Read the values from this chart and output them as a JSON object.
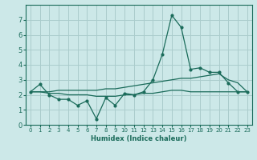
{
  "xlabel": "Humidex (Indice chaleur)",
  "ylabel": "",
  "bg_color": "#cce8e8",
  "grid_color": "#aacccc",
  "line_color": "#1a6b5a",
  "xlim": [
    -0.5,
    23.5
  ],
  "ylim": [
    0,
    8
  ],
  "yticks": [
    0,
    1,
    2,
    3,
    4,
    5,
    6,
    7
  ],
  "xticks": [
    0,
    1,
    2,
    3,
    4,
    5,
    6,
    7,
    8,
    9,
    10,
    11,
    12,
    13,
    14,
    15,
    16,
    17,
    18,
    19,
    20,
    21,
    22,
    23
  ],
  "line1_x": [
    0,
    1,
    2,
    3,
    4,
    5,
    6,
    7,
    8,
    9,
    10,
    11,
    12,
    13,
    14,
    15,
    16,
    17,
    18,
    19,
    20,
    21,
    22,
    23
  ],
  "line1_y": [
    2.2,
    2.7,
    2.0,
    1.7,
    1.7,
    1.3,
    1.6,
    0.4,
    1.8,
    1.3,
    2.1,
    2.0,
    2.2,
    3.0,
    4.7,
    7.3,
    6.5,
    3.7,
    3.8,
    3.5,
    3.5,
    2.8,
    2.2,
    2.2
  ],
  "line2_x": [
    0,
    1,
    2,
    3,
    4,
    5,
    6,
    7,
    8,
    9,
    10,
    11,
    12,
    13,
    14,
    15,
    16,
    17,
    18,
    19,
    20,
    21,
    22,
    23
  ],
  "line2_y": [
    2.2,
    2.2,
    2.1,
    2.1,
    2.0,
    2.0,
    2.0,
    1.9,
    1.9,
    1.9,
    2.0,
    2.0,
    2.1,
    2.1,
    2.2,
    2.3,
    2.3,
    2.2,
    2.2,
    2.2,
    2.2,
    2.2,
    2.2,
    2.2
  ],
  "line3_x": [
    0,
    1,
    2,
    3,
    4,
    5,
    6,
    7,
    8,
    9,
    10,
    11,
    12,
    13,
    14,
    15,
    16,
    17,
    18,
    19,
    20,
    21,
    22,
    23
  ],
  "line3_y": [
    2.2,
    2.2,
    2.2,
    2.3,
    2.3,
    2.3,
    2.3,
    2.3,
    2.4,
    2.4,
    2.5,
    2.6,
    2.7,
    2.8,
    2.9,
    3.0,
    3.1,
    3.1,
    3.2,
    3.3,
    3.4,
    3.0,
    2.8,
    2.2
  ],
  "xlabel_fontsize": 6.0,
  "tick_fontsize": 5.0,
  "ytick_fontsize": 6.0
}
